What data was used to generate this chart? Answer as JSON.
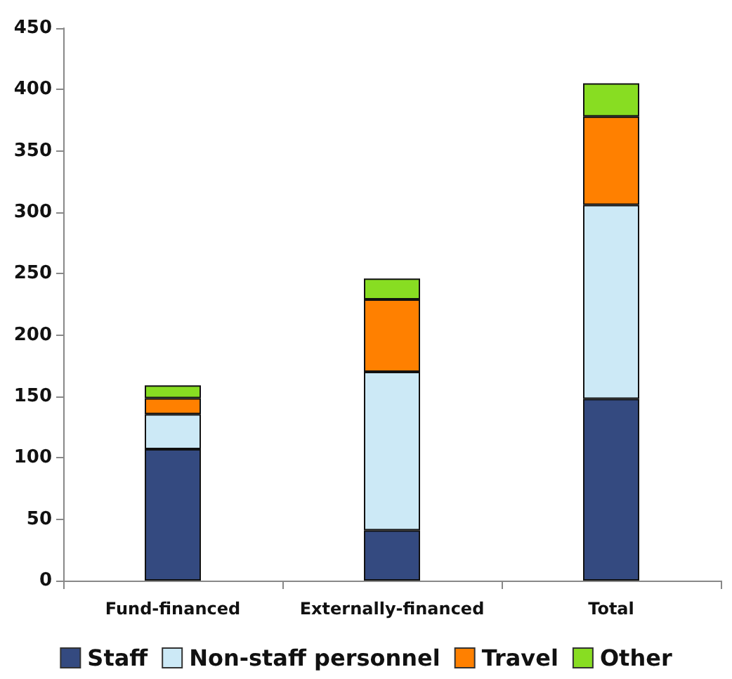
{
  "chart_data": {
    "type": "bar",
    "stacked": true,
    "categories": [
      "Fund-financed",
      "Externally-financed",
      "Total"
    ],
    "series": [
      {
        "name": "Staff",
        "color": "#344a80",
        "values": [
          107,
          41,
          148
        ]
      },
      {
        "name": "Non-staff personnel",
        "color": "#cce9f6",
        "values": [
          28.5,
          129,
          158
        ]
      },
      {
        "name": "Travel",
        "color": "#ff8000",
        "values": [
          13,
          59,
          72
        ]
      },
      {
        "name": "Other",
        "color": "#88dd22",
        "values": [
          10.5,
          17,
          27
        ]
      }
    ],
    "ylim": [
      0,
      450
    ],
    "yticks": [
      0,
      50,
      100,
      150,
      200,
      250,
      300,
      350,
      400,
      450
    ],
    "grid": false,
    "legend": "bottom"
  }
}
